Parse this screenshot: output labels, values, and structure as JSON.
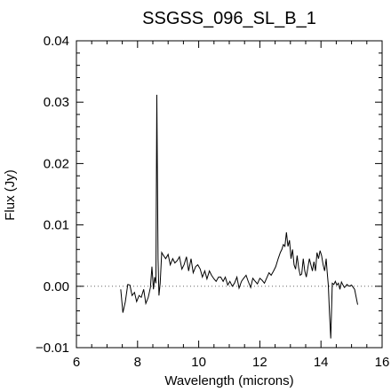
{
  "chart_data": {
    "type": "line",
    "title": "SSGSS_096_SL_B_1",
    "xlabel": "Wavelength (microns)",
    "ylabel": "Flux (Jy)",
    "xlim": [
      6,
      16
    ],
    "ylim": [
      -0.01,
      0.04
    ],
    "xticks": [
      6,
      8,
      10,
      12,
      14,
      16
    ],
    "xtick_labels": [
      "6",
      "8",
      "10",
      "12",
      "14",
      "16"
    ],
    "yticks": [
      -0.01,
      0.0,
      0.01,
      0.02,
      0.03,
      0.04
    ],
    "ytick_labels": [
      "−0.01",
      "0.00",
      "0.01",
      "0.02",
      "0.03",
      "0.04"
    ],
    "reference_line": {
      "y": 0.0,
      "style": "dotted"
    },
    "grid": false,
    "legend": "none",
    "series": [
      {
        "x": [
          7.45,
          7.52,
          7.6,
          7.68,
          7.75,
          7.82,
          7.9,
          7.97,
          8.05,
          8.12,
          8.2,
          8.27,
          8.35,
          8.42,
          8.47,
          8.52,
          8.56,
          8.6,
          8.63,
          8.67,
          8.7,
          8.74,
          8.79,
          8.85,
          8.92,
          9.0,
          9.07,
          9.15,
          9.22,
          9.3,
          9.37,
          9.45,
          9.52,
          9.6,
          9.67,
          9.75,
          9.82,
          9.9,
          9.97,
          10.05,
          10.12,
          10.2,
          10.27,
          10.35,
          10.42,
          10.5,
          10.57,
          10.65,
          10.72,
          10.8,
          10.87,
          10.95,
          11.02,
          11.1,
          11.17,
          11.25,
          11.32,
          11.4,
          11.47,
          11.55,
          11.62,
          11.7,
          11.77,
          11.85,
          11.92,
          12.0,
          12.07,
          12.15,
          12.22,
          12.3,
          12.37,
          12.45,
          12.52,
          12.6,
          12.67,
          12.72,
          12.77,
          12.82,
          12.87,
          12.92,
          12.97,
          13.02,
          13.07,
          13.12,
          13.17,
          13.22,
          13.27,
          13.32,
          13.37,
          13.42,
          13.47,
          13.52,
          13.57,
          13.62,
          13.67,
          13.72,
          13.77,
          13.82,
          13.87,
          13.92,
          13.97,
          14.02,
          14.07,
          14.12,
          14.17,
          14.2,
          14.24,
          14.28,
          14.32,
          14.37,
          14.42,
          14.47,
          14.52,
          14.57,
          14.62,
          14.67,
          14.72,
          14.77,
          14.85,
          14.92,
          15.0,
          15.1,
          15.2
        ],
        "y": [
          -0.0005,
          -0.0043,
          -0.0025,
          0.0003,
          0.0002,
          -0.0015,
          -0.001,
          -0.0025,
          -0.0015,
          -0.0018,
          -0.0005,
          -0.0028,
          -0.0018,
          -0.0002,
          0.0032,
          -0.0005,
          0.0015,
          0.0005,
          0.0312,
          0.0045,
          -0.0015,
          0.0005,
          0.0055,
          0.005,
          0.0045,
          0.0052,
          0.0035,
          0.0045,
          0.0038,
          0.0042,
          0.0048,
          0.0028,
          0.0035,
          0.0048,
          0.0025,
          0.0045,
          0.0022,
          0.0032,
          0.0035,
          0.0028,
          0.0015,
          0.0025,
          0.0012,
          0.0025,
          0.0018,
          0.0012,
          0.0008,
          0.0015,
          0.0015,
          0.0008,
          0.0015,
          0.0002,
          0.0008,
          0.0,
          0.0005,
          0.0015,
          -0.0003,
          0.0008,
          0.0013,
          0.0018,
          0.0008,
          -0.0002,
          0.0013,
          0.0008,
          0.0004,
          0.0013,
          0.001,
          0.0005,
          0.0013,
          0.0022,
          0.0018,
          0.0025,
          0.0032,
          0.0045,
          0.0055,
          0.006,
          0.0068,
          0.0065,
          0.0088,
          0.0065,
          0.0075,
          0.0045,
          0.006,
          0.0035,
          0.0028,
          0.005,
          0.003,
          0.0018,
          0.002,
          0.0045,
          0.0025,
          0.0015,
          0.003,
          0.0045,
          0.0035,
          0.0025,
          0.004,
          0.0025,
          0.0055,
          0.0045,
          0.0058,
          0.005,
          0.0035,
          0.0025,
          0.0045,
          0.0025,
          0.0002,
          -0.0045,
          -0.0085,
          0.0005,
          0.0003,
          0.0008,
          0.0002,
          0.0005,
          -0.0005,
          0.0007,
          0.0002,
          -0.0002,
          0.0003,
          0.0,
          0.0002,
          -0.0005,
          -0.003
        ]
      }
    ]
  }
}
